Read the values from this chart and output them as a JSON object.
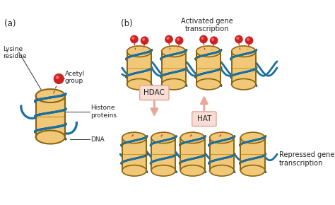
{
  "bg_color": "#ffffff",
  "label_a": "(a)",
  "label_b": "(b)",
  "lysine_label": "Lysine\nresidue",
  "acetyl_label": "Acetyl\ngroup",
  "histone_label": "Histone\nproteins",
  "dna_label": "DNA",
  "activated_label": "Activated gene\ntranscription",
  "repressed_label": "Repressed gene\ntranscription",
  "hdac_label": "HDAC",
  "hat_label": "HAT",
  "histone_fill": "#F0C878",
  "histone_edge": "#C8962A",
  "histone_edge_dark": "#8B6510",
  "dna_color": "#1A6EA0",
  "acetyl_color": "#CC2222",
  "arrow_color": "#E8A898",
  "box_fill": "#F8DDD5",
  "box_edge": "#E0A898",
  "text_color": "#222222",
  "dashed_color": "#DD2222",
  "line_color": "#333333"
}
